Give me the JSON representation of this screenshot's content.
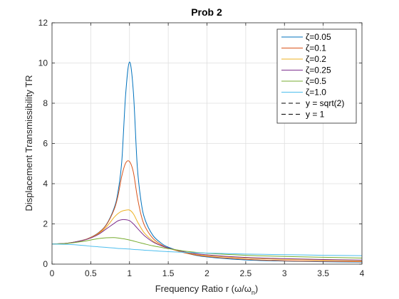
{
  "chart_data": {
    "type": "line",
    "title": "Prob 2",
    "xlabel": "Frequency Ratio r (ω/ωn)",
    "xlabel_parts": {
      "main": "Frequency Ratio r (ω/ω",
      "sub": "n",
      "close": ")"
    },
    "ylabel": "Displacement Transmissibility TR",
    "xlim": [
      0,
      4
    ],
    "ylim": [
      0,
      12
    ],
    "xticks": [
      0,
      0.5,
      1,
      1.5,
      2,
      2.5,
      3,
      3.5,
      4
    ],
    "xtick_labels": [
      "0",
      "0.5",
      "1",
      "1.5",
      "2",
      "2.5",
      "3",
      "3.5",
      "4"
    ],
    "yticks": [
      0,
      2,
      4,
      6,
      8,
      10,
      12
    ],
    "ytick_labels": [
      "0",
      "2",
      "4",
      "6",
      "8",
      "10",
      "12"
    ],
    "grid": true,
    "legend_position": "top-right",
    "series": [
      {
        "name": "ζ=0.05",
        "color": "#0072BD",
        "style": "solid",
        "x": [
          0,
          0.2,
          0.4,
          0.5,
          0.6,
          0.7,
          0.8,
          0.85,
          0.9,
          0.95,
          1.0,
          1.05,
          1.1,
          1.15,
          1.2,
          1.3,
          1.4,
          1.5,
          1.75,
          2,
          2.5,
          3,
          3.5,
          4
        ],
        "y": [
          1.0,
          1.04,
          1.19,
          1.33,
          1.56,
          1.96,
          2.77,
          3.56,
          5.09,
          8.42,
          10.05,
          8.56,
          4.88,
          3.1,
          2.22,
          1.44,
          1.07,
          0.84,
          0.53,
          0.36,
          0.21,
          0.15,
          0.12,
          0.1
        ]
      },
      {
        "name": "ζ=0.1",
        "color": "#D95319",
        "style": "solid",
        "x": [
          0,
          0.2,
          0.4,
          0.5,
          0.6,
          0.7,
          0.8,
          0.85,
          0.9,
          0.95,
          1.0,
          1.05,
          1.1,
          1.15,
          1.2,
          1.3,
          1.4,
          1.5,
          1.75,
          2,
          2.5,
          3,
          3.5,
          4
        ],
        "y": [
          1.0,
          1.04,
          1.19,
          1.33,
          1.55,
          1.94,
          2.7,
          3.37,
          4.37,
          5.02,
          5.1,
          4.57,
          3.36,
          2.44,
          1.87,
          1.29,
          0.99,
          0.8,
          0.53,
          0.38,
          0.24,
          0.17,
          0.14,
          0.12
        ]
      },
      {
        "name": "ζ=0.2",
        "color": "#EDB120",
        "style": "solid",
        "x": [
          0,
          0.2,
          0.4,
          0.5,
          0.6,
          0.7,
          0.8,
          0.85,
          0.9,
          0.95,
          1.0,
          1.05,
          1.1,
          1.15,
          1.2,
          1.3,
          1.4,
          1.5,
          1.75,
          2,
          2.5,
          3,
          3.5,
          4
        ],
        "y": [
          1.0,
          1.04,
          1.18,
          1.31,
          1.51,
          1.84,
          2.32,
          2.51,
          2.63,
          2.68,
          2.69,
          2.5,
          2.13,
          1.79,
          1.51,
          1.16,
          0.94,
          0.79,
          0.56,
          0.43,
          0.3,
          0.24,
          0.2,
          0.17
        ]
      },
      {
        "name": "ζ=0.25",
        "color": "#7E2F8E",
        "style": "solid",
        "x": [
          0,
          0.2,
          0.4,
          0.5,
          0.6,
          0.7,
          0.8,
          0.85,
          0.9,
          0.95,
          1.0,
          1.05,
          1.1,
          1.15,
          1.2,
          1.3,
          1.4,
          1.5,
          1.75,
          2,
          2.5,
          3,
          3.5,
          4
        ],
        "y": [
          1.0,
          1.04,
          1.18,
          1.3,
          1.48,
          1.75,
          2.02,
          2.15,
          2.21,
          2.21,
          2.16,
          2.0,
          1.79,
          1.58,
          1.39,
          1.11,
          0.93,
          0.8,
          0.58,
          0.46,
          0.33,
          0.27,
          0.23,
          0.2
        ]
      },
      {
        "name": "ζ=0.5",
        "color": "#77AC30",
        "style": "solid",
        "x": [
          0,
          0.2,
          0.4,
          0.5,
          0.6,
          0.7,
          0.8,
          0.85,
          0.9,
          0.95,
          1.0,
          1.05,
          1.1,
          1.15,
          1.2,
          1.3,
          1.4,
          1.5,
          1.75,
          2,
          2.5,
          3,
          3.5,
          4
        ],
        "y": [
          1.0,
          1.03,
          1.13,
          1.2,
          1.27,
          1.31,
          1.32,
          1.3,
          1.27,
          1.24,
          1.2,
          1.15,
          1.1,
          1.05,
          1.0,
          0.91,
          0.84,
          0.77,
          0.63,
          0.54,
          0.44,
          0.38,
          0.34,
          0.3
        ]
      },
      {
        "name": "ζ=1.0",
        "color": "#4DBEEE",
        "style": "solid",
        "x": [
          0,
          0.2,
          0.4,
          0.5,
          0.6,
          0.7,
          0.8,
          0.85,
          0.9,
          0.95,
          1.0,
          1.05,
          1.1,
          1.15,
          1.2,
          1.3,
          1.4,
          1.5,
          1.75,
          2,
          2.5,
          3,
          3.5,
          4
        ],
        "y": [
          1.0,
          0.98,
          0.93,
          0.89,
          0.86,
          0.83,
          0.8,
          0.78,
          0.77,
          0.76,
          0.75,
          0.73,
          0.72,
          0.71,
          0.69,
          0.67,
          0.64,
          0.62,
          0.58,
          0.55,
          0.5,
          0.47,
          0.44,
          0.42
        ]
      },
      {
        "name": "y = sqrt(2)",
        "color": "#000000",
        "style": "dashed",
        "x": [],
        "y": []
      },
      {
        "name": "y = 1",
        "color": "#000000",
        "style": "dashed",
        "x": [],
        "y": []
      }
    ]
  }
}
